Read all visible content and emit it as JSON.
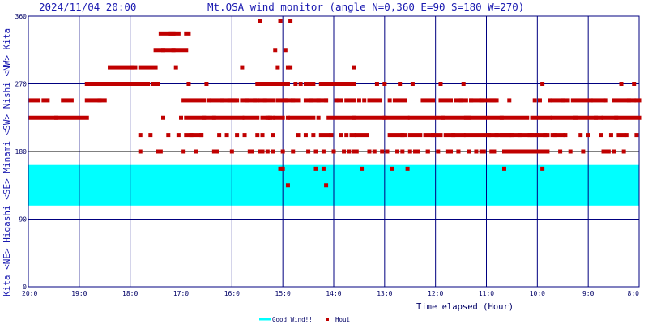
{
  "header": {
    "datetime": "2024/11/04 20:00",
    "title": "Mt.OSA wind monitor (angle N=0,360 E=90 S=180 W=270)"
  },
  "chart_data": {
    "type": "scatter",
    "title": "Mt.OSA wind monitor (angle N=0,360 E=90 S=180 W=270)",
    "xlabel": "Time elapsed (Hour)",
    "ylabel": "Kita <NE> Higashi <SE> Minami <SW> Nishi <NW> Kita",
    "ylabel_parts": [
      "Kita",
      "<NE>",
      "Higashi",
      "<SE>",
      "Minami",
      "<SW>",
      "Nishi",
      "<NW>",
      "Kita"
    ],
    "ylim": [
      0,
      360
    ],
    "yticks": [
      0,
      90,
      180,
      270,
      360
    ],
    "xlim": [
      0,
      12
    ],
    "x_direction": "elapsed hours going back from 20:00 at left to 8:00 at right",
    "xticks": [
      "20:0",
      "19:0",
      "18:0",
      "17:0",
      "16:0",
      "15:0",
      "14:0",
      "13:0",
      "12:0",
      "11:0",
      "10:0",
      "9:0",
      "8:0"
    ],
    "grid": true,
    "good_wind_band": {
      "name": "Good Wind!!",
      "color": "#00ffff",
      "range": [
        108,
        162
      ]
    },
    "series": [
      {
        "name": "Houi",
        "color": "#c00000",
        "segments": [
          [
            0.05,
            0.2,
            248
          ],
          [
            0.05,
            1.15,
            225
          ],
          [
            0.3,
            0.38,
            248
          ],
          [
            0.68,
            0.85,
            248
          ],
          [
            1.15,
            1.4,
            270
          ],
          [
            1.15,
            1.4,
            248
          ],
          [
            1.4,
            1.5,
            248
          ],
          [
            1.4,
            2.0,
            270
          ],
          [
            1.6,
            2.1,
            292
          ],
          [
            2.0,
            2.35,
            270
          ],
          [
            2.2,
            2.5,
            292
          ],
          [
            2.45,
            2.55,
            270
          ],
          [
            2.5,
            2.65,
            315
          ],
          [
            2.6,
            2.85,
            337
          ],
          [
            2.65,
            3.1,
            315
          ],
          [
            2.8,
            2.95,
            337
          ],
          [
            3.1,
            3.15,
            337
          ],
          [
            3.05,
            3.45,
            248
          ],
          [
            3.1,
            3.45,
            225
          ],
          [
            3.1,
            3.4,
            202
          ],
          [
            3.45,
            3.65,
            225
          ],
          [
            3.6,
            3.8,
            248
          ],
          [
            3.65,
            4.2,
            225
          ],
          [
            3.8,
            4.1,
            248
          ],
          [
            4.2,
            4.5,
            248
          ],
          [
            4.25,
            4.5,
            225
          ],
          [
            4.5,
            4.65,
            270
          ],
          [
            4.55,
            4.8,
            248
          ],
          [
            4.6,
            4.8,
            225
          ],
          [
            4.7,
            4.95,
            270
          ],
          [
            4.85,
            5.0,
            225
          ],
          [
            4.9,
            5.15,
            248
          ],
          [
            5.0,
            5.1,
            270
          ],
          [
            5.2,
            5.3,
            248
          ],
          [
            5.15,
            5.6,
            225
          ],
          [
            5.45,
            5.7,
            248
          ],
          [
            5.45,
            5.6,
            270
          ],
          [
            5.7,
            5.85,
            248
          ],
          [
            5.75,
            5.9,
            270
          ],
          [
            5.75,
            5.9,
            202
          ],
          [
            5.9,
            6.4,
            225
          ],
          [
            5.95,
            6.05,
            270
          ],
          [
            6.1,
            6.15,
            248
          ],
          [
            6.1,
            6.2,
            270
          ],
          [
            6.25,
            6.4,
            248
          ],
          [
            6.25,
            6.4,
            270
          ],
          [
            6.35,
            6.4,
            202
          ],
          [
            6.4,
            7.0,
            225
          ],
          [
            6.45,
            6.65,
            202
          ],
          [
            6.7,
            6.9,
            248
          ],
          [
            7.0,
            7.45,
            225
          ],
          [
            7.1,
            7.4,
            202
          ],
          [
            7.2,
            7.4,
            248
          ],
          [
            7.5,
            8.15,
            225
          ],
          [
            7.5,
            7.7,
            202
          ],
          [
            7.75,
            7.95,
            248
          ],
          [
            7.8,
            8.1,
            202
          ],
          [
            8.1,
            8.3,
            248
          ],
          [
            8.15,
            8.65,
            225
          ],
          [
            8.2,
            8.55,
            202
          ],
          [
            8.4,
            8.6,
            248
          ],
          [
            8.7,
            8.85,
            248
          ],
          [
            8.6,
            9.45,
            202
          ],
          [
            8.6,
            9.3,
            225
          ],
          [
            8.9,
            9.15,
            248
          ],
          [
            9.1,
            9.2,
            248
          ],
          [
            9.3,
            9.9,
            202
          ],
          [
            9.3,
            9.8,
            225
          ],
          [
            9.35,
            9.55,
            180
          ],
          [
            9.7,
            9.9,
            180
          ],
          [
            9.9,
            10.25,
            225
          ],
          [
            9.9,
            10.2,
            202
          ],
          [
            10.0,
            10.2,
            180
          ],
          [
            10.3,
            10.6,
            248
          ],
          [
            10.3,
            10.5,
            202
          ],
          [
            10.3,
            11.25,
            225
          ],
          [
            10.7,
            11.05,
            248
          ],
          [
            11.1,
            11.3,
            248
          ],
          [
            11.3,
            12.0,
            225
          ],
          [
            11.5,
            11.8,
            248
          ],
          [
            11.3,
            11.4,
            180
          ],
          [
            11.6,
            11.7,
            202
          ],
          [
            11.8,
            11.9,
            248
          ],
          [
            11.95,
            12.0,
            248
          ]
        ],
        "points": [
          [
            0.55,
            225
          ],
          [
            2.2,
            180
          ],
          [
            2.2,
            202
          ],
          [
            2.4,
            202
          ],
          [
            2.5,
            270
          ],
          [
            2.55,
            180
          ],
          [
            2.6,
            180
          ],
          [
            2.65,
            225
          ],
          [
            2.75,
            202
          ],
          [
            2.9,
            292
          ],
          [
            2.95,
            202
          ],
          [
            3.0,
            225
          ],
          [
            3.05,
            180
          ],
          [
            3.15,
            270
          ],
          [
            3.2,
            202
          ],
          [
            3.3,
            180
          ],
          [
            3.4,
            202
          ],
          [
            3.5,
            270
          ],
          [
            3.55,
            248
          ],
          [
            3.65,
            180
          ],
          [
            3.7,
            180
          ],
          [
            3.75,
            202
          ],
          [
            3.9,
            202
          ],
          [
            3.95,
            248
          ],
          [
            4.0,
            180
          ],
          [
            4.05,
            248
          ],
          [
            4.1,
            202
          ],
          [
            4.2,
            292
          ],
          [
            4.25,
            202
          ],
          [
            4.3,
            248
          ],
          [
            4.35,
            180
          ],
          [
            4.4,
            180
          ],
          [
            4.45,
            248
          ],
          [
            4.5,
            202
          ],
          [
            4.55,
            180
          ],
          [
            4.6,
            202
          ],
          [
            4.7,
            180
          ],
          [
            4.75,
            225
          ],
          [
            4.8,
            202
          ],
          [
            4.9,
            292
          ],
          [
            5.0,
            180
          ],
          [
            5.05,
            248
          ],
          [
            5.1,
            292
          ],
          [
            5.2,
            180
          ],
          [
            5.25,
            270
          ],
          [
            5.3,
            202
          ],
          [
            5.35,
            270
          ],
          [
            5.45,
            202
          ],
          [
            5.5,
            180
          ],
          [
            5.55,
            248
          ],
          [
            5.6,
            202
          ],
          [
            5.65,
            180
          ],
          [
            5.7,
            225
          ],
          [
            5.8,
            180
          ],
          [
            5.85,
            248
          ],
          [
            5.95,
            202
          ],
          [
            6.0,
            180
          ],
          [
            6.05,
            248
          ],
          [
            6.15,
            202
          ],
          [
            6.2,
            180
          ],
          [
            6.25,
            202
          ],
          [
            6.3,
            180
          ],
          [
            6.4,
            270
          ],
          [
            6.45,
            180
          ],
          [
            6.5,
            248
          ],
          [
            6.6,
            248
          ],
          [
            6.7,
            180
          ],
          [
            6.8,
            180
          ],
          [
            6.85,
            270
          ],
          [
            6.95,
            180
          ],
          [
            7.0,
            270
          ],
          [
            7.1,
            248
          ],
          [
            7.25,
            180
          ],
          [
            7.3,
            270
          ],
          [
            7.35,
            202
          ],
          [
            7.5,
            180
          ],
          [
            7.55,
            270
          ],
          [
            7.65,
            180
          ],
          [
            7.85,
            180
          ],
          [
            7.95,
            202
          ],
          [
            8.05,
            180
          ],
          [
            8.1,
            270
          ],
          [
            8.25,
            180
          ],
          [
            8.35,
            202
          ],
          [
            8.45,
            180
          ],
          [
            8.5,
            248
          ],
          [
            8.55,
            270
          ],
          [
            8.65,
            180
          ],
          [
            8.7,
            248
          ],
          [
            8.8,
            180
          ],
          [
            8.9,
            248
          ],
          [
            8.95,
            180
          ],
          [
            9.05,
            202
          ],
          [
            9.15,
            180
          ],
          [
            9.2,
            202
          ],
          [
            9.4,
            180
          ],
          [
            9.45,
            248
          ],
          [
            9.5,
            202
          ],
          [
            9.6,
            180
          ],
          [
            9.65,
            202
          ],
          [
            9.75,
            180
          ],
          [
            9.85,
            202
          ],
          [
            9.95,
            180
          ],
          [
            9.95,
            248
          ],
          [
            10.0,
            202
          ],
          [
            10.05,
            248
          ],
          [
            10.1,
            270
          ],
          [
            10.15,
            202
          ],
          [
            10.25,
            248
          ],
          [
            10.35,
            202
          ],
          [
            10.45,
            180
          ],
          [
            10.5,
            248
          ],
          [
            10.55,
            202
          ],
          [
            10.65,
            180
          ],
          [
            10.75,
            225
          ],
          [
            10.85,
            202
          ],
          [
            10.9,
            180
          ],
          [
            11.0,
            202
          ],
          [
            11.15,
            225
          ],
          [
            11.25,
            202
          ],
          [
            11.35,
            248
          ],
          [
            11.45,
            202
          ],
          [
            11.5,
            180
          ],
          [
            11.55,
            225
          ],
          [
            11.65,
            270
          ],
          [
            11.7,
            180
          ],
          [
            11.75,
            202
          ],
          [
            11.9,
            270
          ],
          [
            11.95,
            202
          ],
          [
            4.55,
            353
          ],
          [
            4.85,
            315
          ],
          [
            5.0,
            270
          ],
          [
            5.05,
            315
          ],
          [
            5.05,
            248
          ],
          [
            6.4,
            292
          ],
          [
            4.65,
            248
          ],
          [
            4.7,
            225
          ],
          [
            4.95,
            270
          ],
          [
            5.95,
            270
          ],
          [
            5.15,
            292
          ],
          [
            2.05,
            292
          ],
          [
            2.25,
            270
          ],
          [
            4.95,
            353
          ],
          [
            5.1,
            225
          ],
          [
            5.15,
            353
          ],
          [
            5.2,
            248
          ]
        ],
        "outliers": [
          [
            2.85,
            315
          ],
          [
            4.6,
            180
          ],
          [
            4.8,
            180
          ],
          [
            5.65,
            180
          ],
          [
            6.4,
            180
          ],
          [
            7.05,
            180
          ],
          [
            7.35,
            180
          ],
          [
            7.6,
            180
          ],
          [
            7.85,
            180
          ],
          [
            8.3,
            180
          ],
          [
            8.45,
            180
          ],
          [
            8.9,
            180
          ],
          [
            9.1,
            180
          ],
          [
            9.35,
            180
          ],
          [
            9.65,
            180
          ],
          [
            9.95,
            180
          ],
          [
            4.95,
            157
          ],
          [
            5.0,
            157
          ],
          [
            5.65,
            157
          ],
          [
            6.55,
            157
          ],
          [
            7.15,
            157
          ],
          [
            7.45,
            157
          ],
          [
            9.35,
            157
          ],
          [
            10.1,
            157
          ],
          [
            5.1,
            135
          ],
          [
            5.85,
            135
          ],
          [
            5.8,
            157
          ]
        ]
      }
    ],
    "legend": [
      {
        "label": "Good Wind!!",
        "color": "#00ffff"
      },
      {
        "label": "Houi",
        "color": "#c00000"
      }
    ],
    "legend_position": "bottom-center"
  }
}
